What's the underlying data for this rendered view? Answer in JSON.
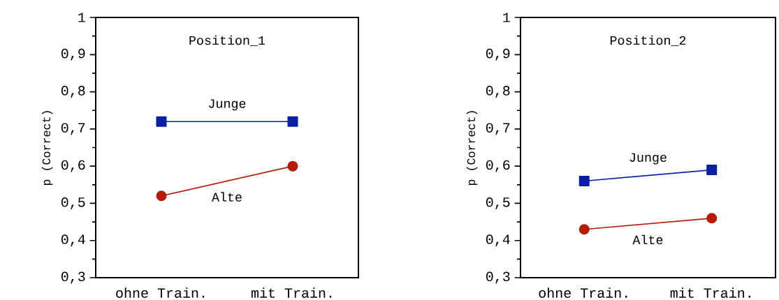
{
  "chart_data": [
    {
      "type": "line",
      "title": "Position_1",
      "ylabel": "p (Correct)",
      "categories": [
        "ohne Train.",
        "mit Train."
      ],
      "series": [
        {
          "name": "Junge",
          "color": "#0a1fa8",
          "marker": "square",
          "values": [
            0.72,
            0.72
          ]
        },
        {
          "name": "Alte",
          "color": "#b81a08",
          "marker": "circle",
          "values": [
            0.52,
            0.6
          ]
        }
      ],
      "ylim": [
        0.3,
        1
      ],
      "yticks": [
        {
          "value": 0.3,
          "label": "0,3"
        },
        {
          "value": 0.4,
          "label": "0,4"
        },
        {
          "value": 0.5,
          "label": "0,5"
        },
        {
          "value": 0.6,
          "label": "0,6"
        },
        {
          "value": 0.7,
          "label": "0,7"
        },
        {
          "value": 0.8,
          "label": "0,8"
        },
        {
          "value": 0.9,
          "label": "0,9"
        },
        1
      ]
    },
    {
      "type": "line",
      "title": "Position_2",
      "ylabel": "p (Correct)",
      "categories": [
        "ohne Train.",
        "mit Train."
      ],
      "series": [
        {
          "name": "Junge",
          "color": "#0a1fa8",
          "marker": "square",
          "values": [
            0.56,
            0.59
          ]
        },
        {
          "name": "Alte",
          "color": "#b81a08",
          "marker": "circle",
          "values": [
            0.43,
            0.46
          ]
        }
      ],
      "ylim": [
        0.3,
        1
      ],
      "yticks": [
        {
          "value": 0.3,
          "label": "0,3"
        },
        {
          "value": 0.4,
          "label": "0,4"
        },
        {
          "value": 0.5,
          "label": "0,5"
        },
        {
          "value": 0.6,
          "label": "0,6"
        },
        {
          "value": 0.7,
          "label": "0,7"
        },
        {
          "value": 0.8,
          "label": "0,8"
        },
        {
          "value": 0.9,
          "label": "0,9"
        },
        1
      ]
    }
  ]
}
